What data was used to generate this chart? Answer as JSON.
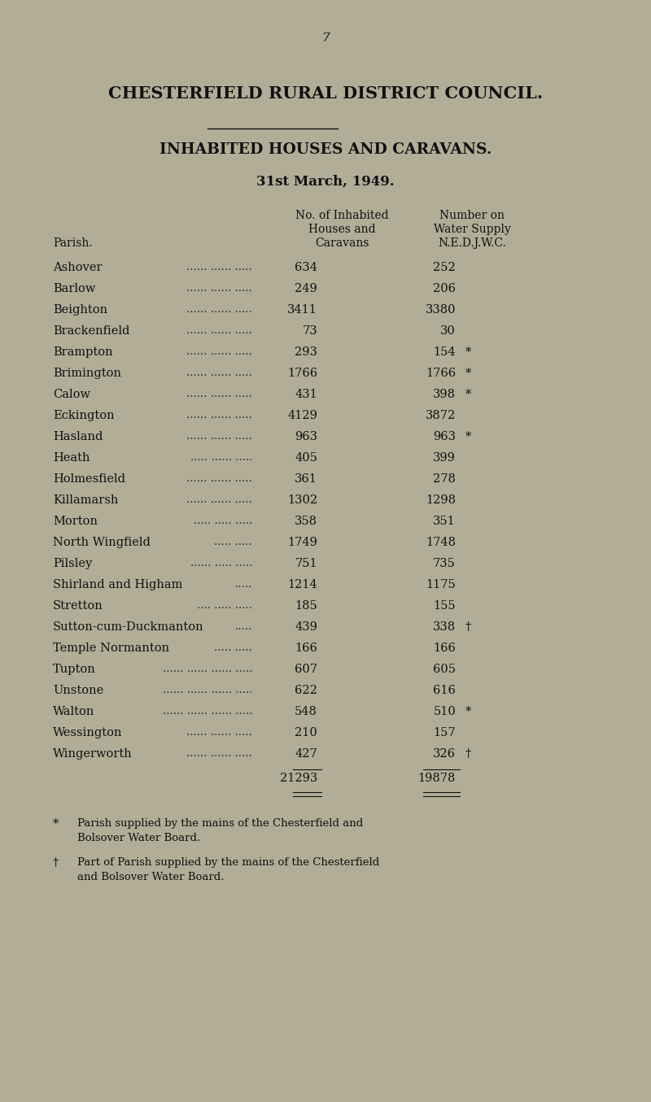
{
  "page_number": "7",
  "title1": "CHESTERFIELD RURAL DISTRICT COUNCIL.",
  "title2": "INHABITED HOUSES AND CARAVANS.",
  "title3": "31st March, 1949.",
  "parish_label": "Parish.",
  "rows": [
    {
      "parish": "Ashover",
      "val1": "634",
      "val2": "252",
      "sym": "",
      "dots": "...... ...... ....."
    },
    {
      "parish": "Barlow",
      "val1": "249",
      "val2": "206",
      "sym": "",
      "dots": "...... ...... ....."
    },
    {
      "parish": "Beighton",
      "val1": "3411",
      "val2": "3380",
      "sym": "",
      "dots": "...... ...... ....."
    },
    {
      "parish": "Brackenfield",
      "val1": "73",
      "val2": "30",
      "sym": "",
      "dots": "...... ...... ....."
    },
    {
      "parish": "Brampton",
      "val1": "293",
      "val2": "154",
      "sym": "*",
      "dots": "...... ...... ....."
    },
    {
      "parish": "Brimington",
      "val1": "1766",
      "val2": "1766",
      "sym": "*",
      "dots": "...... ...... ....."
    },
    {
      "parish": "Calow",
      "val1": "431",
      "val2": "398",
      "sym": "*",
      "dots": "...... ...... ....."
    },
    {
      "parish": "Eckington",
      "val1": "4129",
      "val2": "3872",
      "sym": "",
      "dots": "...... ...... ....."
    },
    {
      "parish": "Hasland",
      "val1": "963",
      "val2": "963",
      "sym": "*",
      "dots": "...... ...... ....."
    },
    {
      "parish": "Heath",
      "val1": "405",
      "val2": "399",
      "sym": "",
      "dots": "..... ...... ....."
    },
    {
      "parish": "Holmesfield",
      "val1": "361",
      "val2": "278",
      "sym": "",
      "dots": "...... ...... ....."
    },
    {
      "parish": "Killamarsh",
      "val1": "1302",
      "val2": "1298",
      "sym": "",
      "dots": "...... ...... ....."
    },
    {
      "parish": "Morton",
      "val1": "358",
      "val2": "351",
      "sym": "",
      "dots": "..... ..... ....."
    },
    {
      "parish": "North Wingfield",
      "val1": "1749",
      "val2": "1748",
      "sym": "",
      "dots": "..... ....."
    },
    {
      "parish": "Pilsley",
      "val1": "751",
      "val2": "735",
      "sym": "",
      "dots": "...... ..... ....."
    },
    {
      "parish": "Shirland and Higham",
      "val1": "1214",
      "val2": "1175",
      "sym": "",
      "dots": "....."
    },
    {
      "parish": "Stretton",
      "val1": "185",
      "val2": "155",
      "sym": "",
      "dots": ".... ..... ....."
    },
    {
      "parish": "Sutton-cum-Duckmanton",
      "val1": "439",
      "val2": "338",
      "sym": "†",
      "dots": "....."
    },
    {
      "parish": "Temple Normanton",
      "val1": "166",
      "val2": "166",
      "sym": "",
      "dots": "..... ....."
    },
    {
      "parish": "Tupton",
      "val1": "607",
      "val2": "605",
      "sym": "",
      "dots": "...... ...... ...... ....."
    },
    {
      "parish": "Unstone",
      "val1": "622",
      "val2": "616",
      "sym": "",
      "dots": "...... ...... ...... ....."
    },
    {
      "parish": "Walton",
      "val1": "548",
      "val2": "510",
      "sym": "*",
      "dots": "...... ...... ...... ....."
    },
    {
      "parish": "Wessington",
      "val1": "210",
      "val2": "157",
      "sym": "",
      "dots": "...... ...... ....."
    },
    {
      "parish": "Wingerworth",
      "val1": "427",
      "val2": "326",
      "sym": "†",
      "dots": "...... ...... ....."
    }
  ],
  "total1": "21293",
  "total2": "19878",
  "bg_color": "#b2ad97",
  "text_color": "#111111"
}
